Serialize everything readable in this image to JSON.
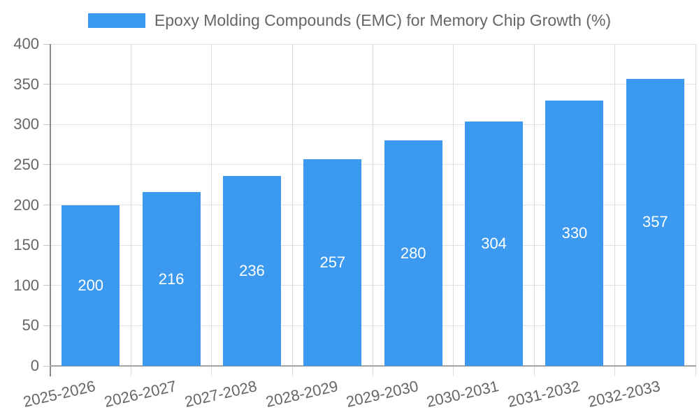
{
  "chart_data": {
    "type": "bar",
    "title": "Epoxy Molding Compounds (EMC) for Memory Chip Growth (%)",
    "legend": {
      "label": "Epoxy Molding Compounds (EMC) for Memory Chip Growth (%)",
      "position": "top"
    },
    "categories": [
      "2025-2026",
      "2026-2027",
      "2027-2028",
      "2028-2029",
      "2029-2030",
      "2030-2031",
      "2031-2032",
      "2032-2033"
    ],
    "series": [
      {
        "name": "Epoxy Molding Compounds (EMC) for Memory Chip Growth (%)",
        "values": [
          200,
          216,
          236,
          257,
          280,
          304,
          330,
          357
        ]
      }
    ],
    "data_labels": [
      "200",
      "216",
      "236",
      "257",
      "280",
      "304",
      "330",
      "357"
    ],
    "xlabel": "",
    "ylabel": "",
    "ylim": [
      0,
      400
    ],
    "ytick_interval": 50,
    "yticks": [
      0,
      50,
      100,
      150,
      200,
      250,
      300,
      350,
      400
    ],
    "grid": true,
    "colors": {
      "bar": "#3B9AF0",
      "bar_label": "#FFFFFF",
      "axis_text": "#666666",
      "grid_line_h": "#E1E1E1",
      "grid_line_v": "#DCDCDC",
      "axis_line_x": "#A3A3A3",
      "axis_line_y": "#8A8A8A"
    }
  }
}
